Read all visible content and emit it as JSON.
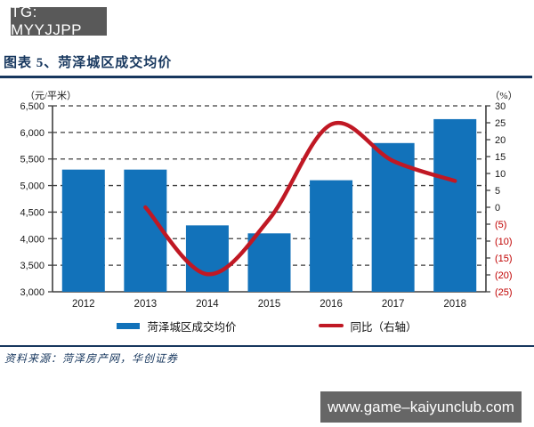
{
  "badge": {
    "label": "TG: MYYJJPP"
  },
  "figure": {
    "title": "图表 5、菏泽城区成交均价",
    "source": "资料来源：菏泽房产网，华创证券"
  },
  "watermark": {
    "url": "www.game–kaiyunclub.com"
  },
  "chart_data": {
    "type": "combo",
    "title": "图表 5、菏泽城区成交均价",
    "categories": [
      "2012",
      "2013",
      "2014",
      "2015",
      "2016",
      "2017",
      "2018"
    ],
    "series": [
      {
        "name": "菏泽城区成交均价",
        "type": "bar",
        "axis": "left",
        "color": "#1272BA",
        "values": [
          5300,
          5300,
          4250,
          4100,
          5100,
          5800,
          6250
        ]
      },
      {
        "name": "同比（右轴）",
        "type": "line",
        "axis": "right",
        "color": "#C01824",
        "values": [
          null,
          0,
          -19.8,
          -3.5,
          24.5,
          13.7,
          7.8
        ]
      }
    ],
    "left_axis": {
      "label": "（元/平米）",
      "min": 3000,
      "max": 6500,
      "step": 500
    },
    "right_axis": {
      "label": "（%）",
      "min": -25,
      "max": 30,
      "step": 5,
      "negative_style": "parentheses",
      "negative_color": "#C00000"
    },
    "grid": "dashed-horizontal",
    "legend_position": "bottom"
  }
}
